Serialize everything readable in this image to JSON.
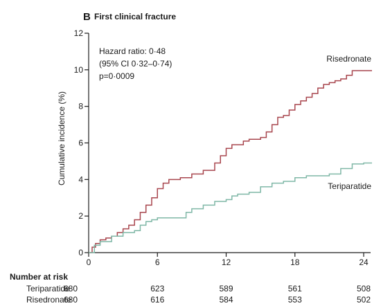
{
  "chart_data": {
    "type": "line",
    "panel_letter": "B",
    "title": "First clinical fracture",
    "xlabel": "",
    "ylabel": "Cumulative incidence (%)",
    "xlim": [
      0,
      24
    ],
    "ylim": [
      0,
      12
    ],
    "x_ticks": [
      0,
      6,
      12,
      18,
      24
    ],
    "y_ticks": [
      0,
      2,
      4,
      6,
      8,
      10,
      12
    ],
    "grid": false,
    "annotation_lines": [
      "Hazard ratio: 0·48",
      "(95% CI 0·32–0·74)",
      "p=0·0009"
    ],
    "series": [
      {
        "name": "Risedronate",
        "color": "#a8454d",
        "x": [
          0,
          0.3,
          0.6,
          1,
          1.5,
          2,
          2.5,
          3,
          3.5,
          4,
          4.5,
          5,
          5.5,
          6,
          6.5,
          7,
          8,
          9,
          10,
          11,
          11.5,
          12,
          12.5,
          13,
          13.5,
          14,
          15,
          15.5,
          16,
          16.5,
          17,
          17.5,
          18,
          18.5,
          19,
          19.5,
          20,
          20.5,
          21,
          21.5,
          22,
          22.5,
          23,
          24
        ],
        "y": [
          0,
          0.3,
          0.5,
          0.7,
          0.8,
          0.9,
          1.1,
          1.3,
          1.5,
          1.8,
          2.2,
          2.6,
          3.0,
          3.5,
          3.8,
          4.0,
          4.1,
          4.3,
          4.5,
          4.9,
          5.3,
          5.7,
          5.9,
          5.9,
          6.1,
          6.2,
          6.3,
          6.6,
          7.0,
          7.4,
          7.5,
          7.8,
          8.1,
          8.3,
          8.5,
          8.7,
          9.0,
          9.2,
          9.3,
          9.4,
          9.5,
          9.7,
          9.95,
          9.95
        ]
      },
      {
        "name": "Teriparatide",
        "color": "#7fb7a6",
        "x": [
          0,
          0.5,
          1,
          2,
          3,
          4,
          4.5,
          5,
          5.5,
          6,
          7,
          8,
          8.5,
          9,
          10,
          11,
          12,
          12.5,
          13,
          14,
          15,
          16,
          17,
          18,
          19,
          20,
          21,
          22,
          23,
          24
        ],
        "y": [
          0,
          0.4,
          0.6,
          0.9,
          1.1,
          1.2,
          1.5,
          1.7,
          1.8,
          1.9,
          1.9,
          1.9,
          2.2,
          2.4,
          2.6,
          2.8,
          2.9,
          3.1,
          3.2,
          3.3,
          3.6,
          3.8,
          3.9,
          4.1,
          4.2,
          4.2,
          4.3,
          4.6,
          4.85,
          4.9
        ]
      }
    ],
    "number_at_risk": {
      "heading": "Number at risk",
      "time_points": [
        0,
        6,
        12,
        18,
        24
      ],
      "rows": [
        {
          "name": "Teriparatide",
          "values": [
            680,
            623,
            589,
            561,
            508
          ]
        },
        {
          "name": "Risedronate",
          "values": [
            680,
            616,
            584,
            553,
            502
          ]
        }
      ]
    }
  }
}
